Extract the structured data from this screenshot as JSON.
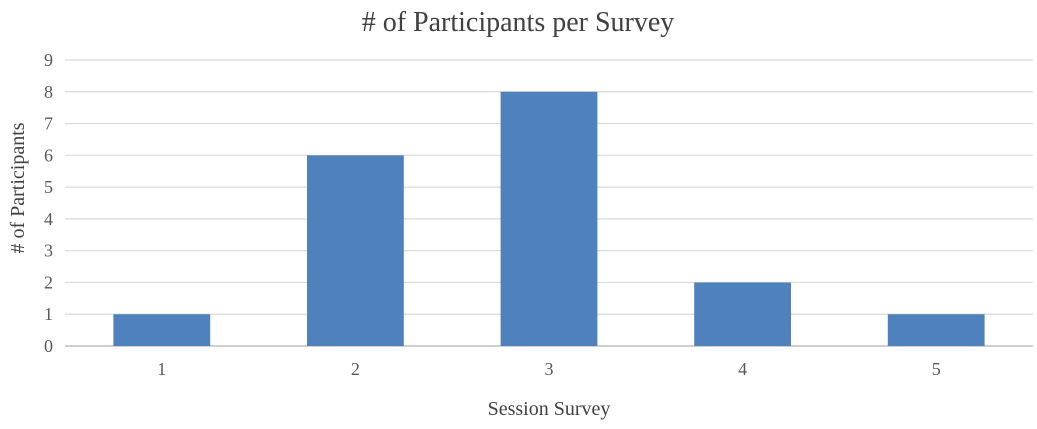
{
  "chart_data": {
    "type": "bar",
    "title": "# of Participants per Survey",
    "xlabel": "Session Survey",
    "ylabel": "# of Participants",
    "categories": [
      "1",
      "2",
      "3",
      "4",
      "5"
    ],
    "values": [
      1,
      6,
      8,
      2,
      1
    ],
    "ylim": [
      0,
      9
    ],
    "yticks": [
      "0",
      "1",
      "2",
      "3",
      "4",
      "5",
      "6",
      "7",
      "8",
      "9"
    ],
    "grid": true,
    "legend": "none",
    "bar_color": "#4f81bd"
  }
}
